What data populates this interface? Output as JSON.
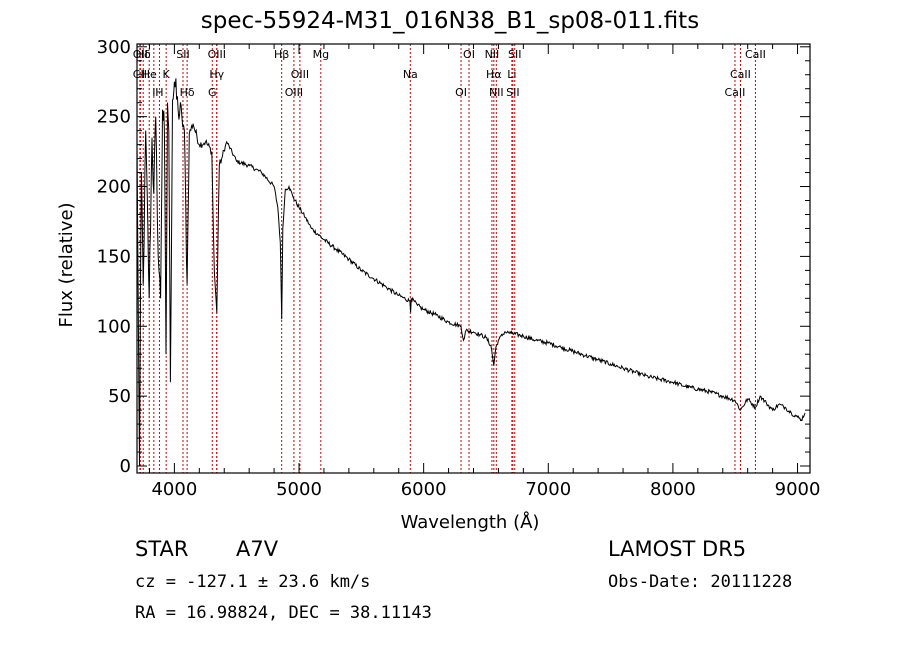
{
  "title": "spec-55924-M31_016N38_B1_sp08-011.fits",
  "info": {
    "obj_class": "STAR",
    "obj_subclass": "A7V",
    "survey": "LAMOST DR5",
    "cz": "cz = -127.1 ± 23.6 km/s",
    "obs_date": "Obs-Date: 20111228",
    "radec": "RA =  16.98824, DEC =  38.11143"
  },
  "chart_data": {
    "type": "line",
    "xlabel": "Wavelength (Å)",
    "ylabel": "Flux (relative)",
    "xlim": [
      3700,
      9100
    ],
    "ylim": [
      -5,
      302
    ],
    "xticks": [
      4000,
      5000,
      6000,
      7000,
      8000,
      9000
    ],
    "yticks": [
      0,
      50,
      100,
      150,
      200,
      250,
      300
    ],
    "grid": false,
    "line_color": "#000000",
    "marker_color": "#cc0000",
    "series": [
      {
        "x": [
          3700,
          3720,
          3735,
          3750,
          3770,
          3798,
          3820,
          3835,
          3850,
          3870,
          3889,
          3905,
          3920,
          3933,
          3945,
          3955,
          3968,
          3985,
          4000,
          4030,
          4060,
          4080,
          4102,
          4120,
          4150,
          4200,
          4250,
          4300,
          4320,
          4340,
          4360,
          4380,
          4420,
          4500,
          4600,
          4700,
          4800,
          4830,
          4850,
          4861,
          4870,
          4890,
          4920,
          4950,
          5000,
          5050,
          5100,
          5200,
          5300,
          5400,
          5500,
          5600,
          5700,
          5800,
          5890,
          5895,
          5900,
          5950,
          6000,
          6100,
          6200,
          6300,
          6320,
          6340,
          6400,
          6450,
          6500,
          6540,
          6563,
          6580,
          6600,
          6650,
          6700,
          6800,
          6900,
          7000,
          7100,
          7200,
          7300,
          7400,
          7500,
          7600,
          7700,
          7800,
          7900,
          8000,
          8100,
          8200,
          8300,
          8400,
          8498,
          8542,
          8600,
          8662,
          8700,
          8750,
          8800,
          8850,
          8900,
          8950,
          9000,
          9030,
          9060
        ],
        "y": [
          230,
          0,
          210,
          130,
          240,
          120,
          235,
          195,
          250,
          150,
          120,
          255,
          240,
          80,
          260,
          240,
          60,
          262,
          275,
          255,
          250,
          240,
          130,
          238,
          245,
          230,
          232,
          225,
          140,
          110,
          215,
          220,
          232,
          218,
          215,
          210,
          200,
          185,
          160,
          105,
          170,
          198,
          200,
          193,
          185,
          178,
          170,
          162,
          155,
          148,
          140,
          134,
          128,
          122,
          118,
          110,
          120,
          115,
          112,
          108,
          103,
          100,
          90,
          97,
          96,
          94,
          92,
          86,
          72,
          85,
          90,
          96,
          95,
          93,
          90,
          88,
          85,
          82,
          79,
          76,
          73,
          70,
          67,
          64,
          62,
          60,
          57,
          55,
          53,
          50,
          47,
          40,
          48,
          42,
          50,
          45,
          40,
          44,
          42,
          38,
          35,
          33,
          38
        ]
      }
    ],
    "line_markers": [
      {
        "label": "Hδ",
        "x": 3750
      },
      {
        "label": "K",
        "x": 3934
      },
      {
        "label": "Hδ",
        "x": 4102
      },
      {
        "label": "OII",
        "x": 3727
      },
      {
        "label": "He",
        "x": 3798
      },
      {
        "label": "I",
        "x": 3835
      },
      {
        "label": "SII",
        "x": 4069
      },
      {
        "label": "CII",
        "x": 3723
      },
      {
        "label": "H",
        "x": 3880
      },
      {
        "label": "OIII",
        "x": 4340
      },
      {
        "label": "Hγ",
        "x": 4340
      },
      {
        "label": "G",
        "x": 4304
      },
      {
        "label": "Hβ",
        "x": 4861
      },
      {
        "label": "OIII",
        "x": 5007
      },
      {
        "label": "OIII",
        "x": 4959
      },
      {
        "label": "Mg",
        "x": 5175
      },
      {
        "label": "Na",
        "x": 5893
      },
      {
        "label": "OI",
        "x": 6300
      },
      {
        "label": "OI",
        "x": 6364
      },
      {
        "label": "Hα",
        "x": 6563
      },
      {
        "label": "SII",
        "x": 6716
      },
      {
        "label": "NII",
        "x": 6548
      },
      {
        "label": "Li",
        "x": 6708
      },
      {
        "label": "NII",
        "x": 6583
      },
      {
        "label": "SII",
        "x": 6731
      },
      {
        "label": "CaII",
        "x": 8542
      },
      {
        "label": "CaII",
        "x": 8498
      },
      {
        "label": "CaII",
        "x": 8662
      }
    ]
  }
}
